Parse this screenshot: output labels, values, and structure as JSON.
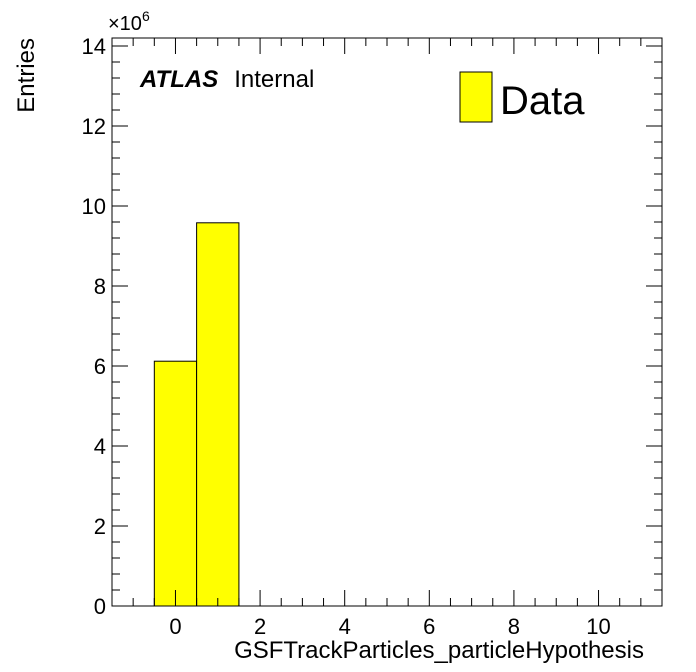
{
  "chart_data": {
    "type": "bar",
    "title": "",
    "xlabel": "GSFTrackParticles_particleHypothesis",
    "ylabel": "Entries",
    "xlim": [
      -1.5,
      11.5
    ],
    "ylim": [
      0,
      14.2
    ],
    "y_multiplier": "×10",
    "y_multiplier_exponent": "6",
    "x_ticks": [
      "0",
      "2",
      "4",
      "6",
      "8",
      "10"
    ],
    "y_ticks": [
      "0",
      "2",
      "4",
      "6",
      "8",
      "10",
      "12",
      "14"
    ],
    "bins": [
      {
        "low": -0.5,
        "high": 0.5,
        "value": 6.12
      },
      {
        "low": 0.5,
        "high": 1.5,
        "value": 9.58
      }
    ],
    "series": [
      {
        "name": "Data",
        "color": "#ffff00"
      }
    ],
    "legend_position": "top-right",
    "grid": false
  },
  "label": {
    "experiment": "ATLAS",
    "status": "Internal"
  },
  "colors": {
    "fill": "#ffff00",
    "stroke": "#000000"
  }
}
